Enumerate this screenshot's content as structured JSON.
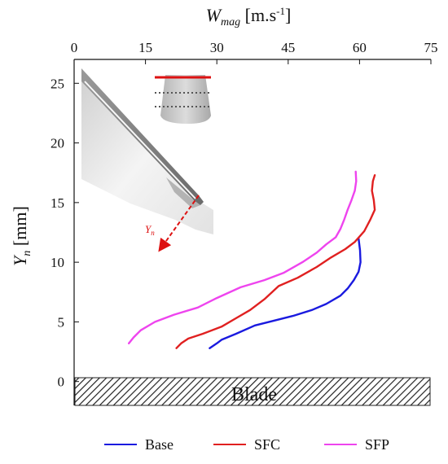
{
  "chart_data": {
    "type": "line",
    "xlabel_main": "W",
    "xlabel_sub": "mag",
    "xlabel_unit_pre": " [m.s",
    "xlabel_unit_sup": "-1",
    "xlabel_unit_post": "]",
    "ylabel_main": "Y",
    "ylabel_sub": "n",
    "ylabel_unit": " [mm]",
    "xlim": [
      0,
      75
    ],
    "ylim": [
      -2,
      27
    ],
    "x_ticks": [
      0,
      15,
      30,
      45,
      60,
      75
    ],
    "x_tick_labels": [
      "0",
      "15",
      "30",
      "45",
      "60",
      "75"
    ],
    "y_ticks": [
      0,
      5,
      10,
      15,
      20,
      25
    ],
    "y_tick_labels": [
      "0",
      "5",
      "10",
      "15",
      "20",
      "25"
    ],
    "blade_label": "Blade",
    "inset_arrow_label_main": "Y",
    "inset_arrow_label_sub": "n",
    "legend_position": "bottom",
    "series": [
      {
        "name": "Base",
        "color": "#1a1adf",
        "points": [
          [
            28.5,
            2.8
          ],
          [
            30,
            3.2
          ],
          [
            31,
            3.5
          ],
          [
            34,
            4.0
          ],
          [
            38,
            4.7
          ],
          [
            42,
            5.1
          ],
          [
            46,
            5.5
          ],
          [
            50,
            6.0
          ],
          [
            53,
            6.5
          ],
          [
            56,
            7.2
          ],
          [
            57.5,
            7.8
          ],
          [
            58.8,
            8.5
          ],
          [
            59.8,
            9.2
          ],
          [
            60.2,
            10.0
          ],
          [
            60.1,
            11.0
          ],
          [
            59.8,
            12.0
          ]
        ]
      },
      {
        "name": "SFC",
        "color": "#e02020",
        "points": [
          [
            21.5,
            2.8
          ],
          [
            22.5,
            3.2
          ],
          [
            24,
            3.6
          ],
          [
            27,
            4.0
          ],
          [
            31,
            4.6
          ],
          [
            34,
            5.3
          ],
          [
            37,
            6.0
          ],
          [
            40,
            6.9
          ],
          [
            43,
            8.0
          ],
          [
            47,
            8.7
          ],
          [
            51,
            9.6
          ],
          [
            54,
            10.4
          ],
          [
            57,
            11.1
          ],
          [
            59,
            11.7
          ],
          [
            61,
            12.6
          ],
          [
            62.3,
            13.6
          ],
          [
            63.2,
            14.4
          ],
          [
            63,
            15.2
          ],
          [
            62.6,
            16.0
          ],
          [
            62.8,
            16.8
          ],
          [
            63.2,
            17.3
          ]
        ]
      },
      {
        "name": "SFP",
        "color": "#ee44ee",
        "points": [
          [
            11.5,
            3.2
          ],
          [
            12.5,
            3.7
          ],
          [
            14,
            4.3
          ],
          [
            17,
            5.0
          ],
          [
            21,
            5.6
          ],
          [
            26,
            6.2
          ],
          [
            30,
            7.0
          ],
          [
            35,
            7.9
          ],
          [
            40,
            8.5
          ],
          [
            44,
            9.1
          ],
          [
            48,
            10.0
          ],
          [
            51,
            10.8
          ],
          [
            53,
            11.5
          ],
          [
            55,
            12.1
          ],
          [
            56,
            12.8
          ],
          [
            56.8,
            13.6
          ],
          [
            57.5,
            14.4
          ],
          [
            58.3,
            15.2
          ],
          [
            59,
            16.0
          ],
          [
            59.3,
            16.8
          ],
          [
            59.2,
            17.6
          ]
        ]
      }
    ]
  }
}
